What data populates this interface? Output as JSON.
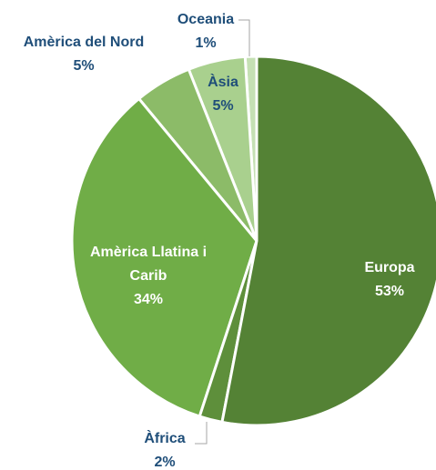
{
  "chart_data": {
    "type": "pie",
    "categories": [
      "Europa",
      "Àfrica",
      "Amèrica Llatina i Carib",
      "Amèrica del Nord",
      "Àsia",
      "Oceania"
    ],
    "values": [
      53,
      2,
      34,
      5,
      5,
      1
    ],
    "value_labels": [
      "53%",
      "2%",
      "34%",
      "5%",
      "5%",
      "1%"
    ],
    "colors": [
      "#548235",
      "#5e8f3b",
      "#70ad47",
      "#8cbb68",
      "#a9d08e",
      "#c5e0b4"
    ]
  }
}
